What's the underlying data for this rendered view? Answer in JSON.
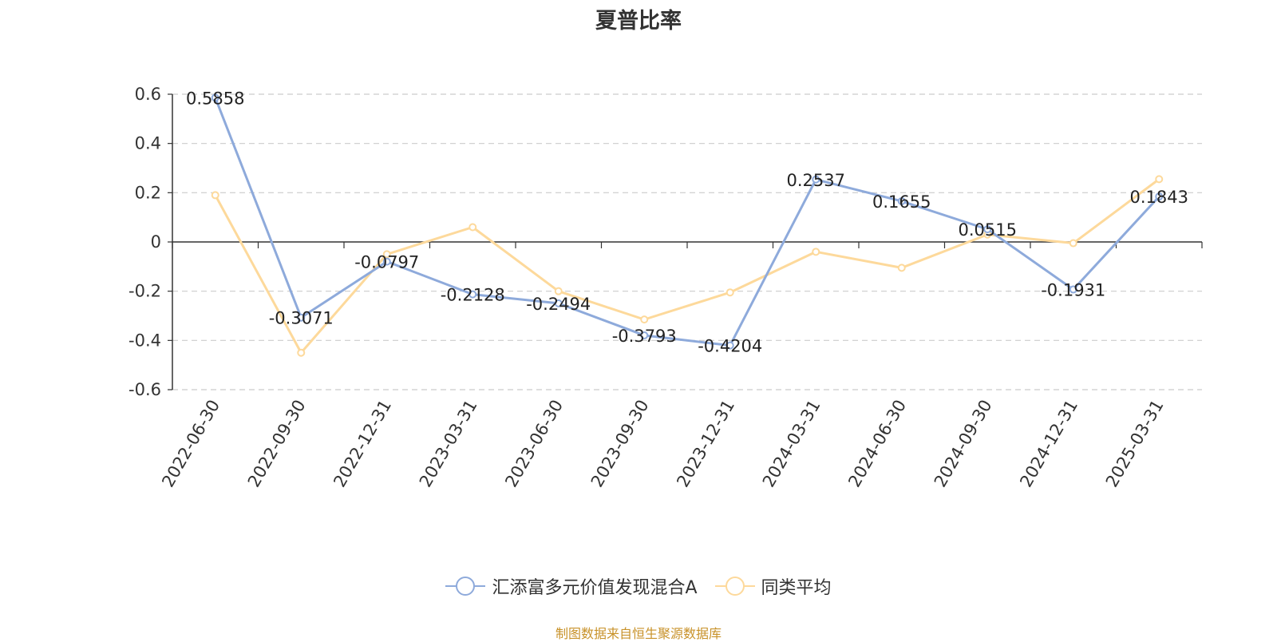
{
  "title": "夏普比率",
  "footer": "制图数据来自恒生聚源数据库",
  "colors": {
    "series_a": "#8eaadb",
    "series_b": "#fdd99b",
    "footer": "#c8922a",
    "grid": "#cccccc",
    "axis": "#333333",
    "text": "#333333"
  },
  "chart_data": {
    "type": "line",
    "title": "夏普比率",
    "x": [
      "2022-06-30",
      "2022-09-30",
      "2022-12-31",
      "2023-03-31",
      "2023-06-30",
      "2023-09-30",
      "2023-12-31",
      "2024-03-31",
      "2024-06-30",
      "2024-09-30",
      "2024-12-31",
      "2025-03-31"
    ],
    "ylim": [
      -0.6,
      0.6
    ],
    "yticks": [
      "0.6",
      "0.4",
      "0.2",
      "0",
      "-0.2",
      "-0.4",
      "-0.6"
    ],
    "grid": true,
    "legend": "bottom-center",
    "series": [
      {
        "name": "汇添富多元价值发现混合A",
        "values": [
          0.5858,
          -0.3071,
          -0.0797,
          -0.2128,
          -0.2494,
          -0.3793,
          -0.4204,
          0.2537,
          0.1655,
          0.0515,
          -0.1931,
          0.1843
        ],
        "labels": [
          "0.5858",
          "-0.3071",
          "-0.0797",
          "-0.2128",
          "-0.2494",
          "-0.3793",
          "-0.4204",
          "0.2537",
          "0.1655",
          "0.0515",
          "-0.1931",
          "0.1843"
        ]
      },
      {
        "name": "同类平均",
        "values": [
          0.19,
          -0.45,
          -0.05,
          0.06,
          -0.2,
          -0.315,
          -0.205,
          -0.04,
          -0.105,
          0.03,
          -0.005,
          0.255
        ]
      }
    ]
  }
}
